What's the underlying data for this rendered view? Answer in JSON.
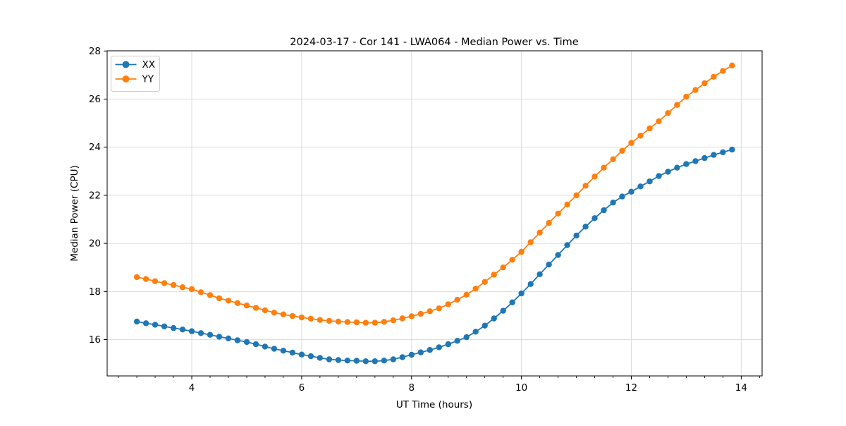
{
  "figure": {
    "background": "#ffffff"
  },
  "chart_data": {
    "type": "line",
    "title": "2024-03-17 - Cor 141 - LWA064 - Median Power vs. Time",
    "xlabel": "UT Time (hours)",
    "ylabel": "Median Power (CPU)",
    "xlim": [
      2.46,
      14.38
    ],
    "ylim": [
      14.49,
      28.01
    ],
    "xticks": [
      4,
      6,
      8,
      10,
      12,
      14
    ],
    "yticks": [
      16,
      18,
      20,
      22,
      24,
      26,
      28
    ],
    "x_minor_step": 0.33333,
    "grid": true,
    "grid_color": "#dcdcdc",
    "spine_color": "#000000",
    "legend_position": "upper-left",
    "marker": "circle",
    "x": [
      3.0,
      3.167,
      3.333,
      3.5,
      3.667,
      3.833,
      4.0,
      4.167,
      4.333,
      4.5,
      4.667,
      4.833,
      5.0,
      5.167,
      5.333,
      5.5,
      5.667,
      5.833,
      6.0,
      6.167,
      6.333,
      6.5,
      6.667,
      6.833,
      7.0,
      7.167,
      7.333,
      7.5,
      7.667,
      7.833,
      8.0,
      8.167,
      8.333,
      8.5,
      8.667,
      8.833,
      9.0,
      9.167,
      9.333,
      9.5,
      9.667,
      9.833,
      10.0,
      10.167,
      10.333,
      10.5,
      10.667,
      10.833,
      11.0,
      11.167,
      11.333,
      11.5,
      11.667,
      11.833,
      12.0,
      12.167,
      12.333,
      12.5,
      12.667,
      12.833,
      13.0,
      13.167,
      13.333,
      13.5,
      13.667,
      13.833
    ],
    "series": [
      {
        "name": "XX",
        "color": "#1f77b4",
        "values": [
          16.75,
          16.68,
          16.62,
          16.55,
          16.48,
          16.42,
          16.35,
          16.27,
          16.2,
          16.12,
          16.05,
          15.97,
          15.9,
          15.81,
          15.71,
          15.62,
          15.54,
          15.46,
          15.38,
          15.31,
          15.24,
          15.18,
          15.15,
          15.13,
          15.12,
          15.1,
          15.1,
          15.13,
          15.18,
          15.27,
          15.37,
          15.47,
          15.57,
          15.68,
          15.81,
          15.95,
          16.1,
          16.33,
          16.58,
          16.88,
          17.2,
          17.55,
          17.92,
          18.31,
          18.72,
          19.12,
          19.52,
          19.93,
          20.33,
          20.7,
          21.05,
          21.38,
          21.7,
          21.95,
          22.15,
          22.37,
          22.58,
          22.8,
          22.98,
          23.15,
          23.3,
          23.42,
          23.55,
          23.68,
          23.79,
          23.9
        ]
      },
      {
        "name": "YY",
        "color": "#ff7f0e",
        "values": [
          18.6,
          18.52,
          18.43,
          18.35,
          18.27,
          18.18,
          18.1,
          17.97,
          17.85,
          17.72,
          17.62,
          17.52,
          17.42,
          17.32,
          17.22,
          17.12,
          17.05,
          16.98,
          16.92,
          16.87,
          16.82,
          16.78,
          16.75,
          16.73,
          16.72,
          16.7,
          16.7,
          16.74,
          16.8,
          16.88,
          16.97,
          17.07,
          17.18,
          17.3,
          17.47,
          17.66,
          17.87,
          18.12,
          18.4,
          18.7,
          19.0,
          19.32,
          19.65,
          20.05,
          20.45,
          20.85,
          21.24,
          21.62,
          22.0,
          22.4,
          22.78,
          23.15,
          23.5,
          23.85,
          24.18,
          24.48,
          24.78,
          25.08,
          25.42,
          25.76,
          26.1,
          26.38,
          26.66,
          26.93,
          27.17,
          27.4
        ]
      }
    ]
  }
}
